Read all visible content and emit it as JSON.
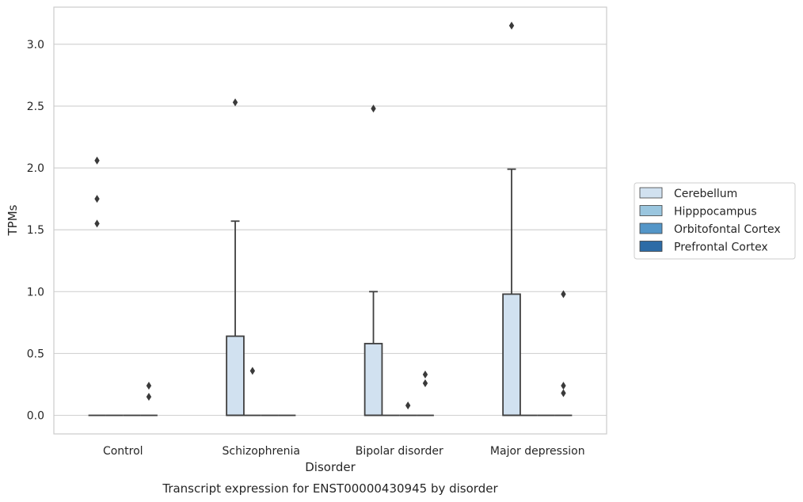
{
  "chart_data": {
    "type": "box",
    "title": "Transcript expression for ENST00000430945 by disorder",
    "xlabel": "Disorder",
    "ylabel": "TPMs",
    "ylim": [
      -0.15,
      3.3
    ],
    "yticks": [
      "0.0",
      "0.5",
      "1.0",
      "1.5",
      "2.0",
      "2.5",
      "3.0"
    ],
    "grid": true,
    "legend_position": "right",
    "categories": [
      "Control",
      "Schizophrenia",
      "Bipolar disorder",
      "Major depression"
    ],
    "series": [
      {
        "name": "Cerebellum",
        "color": "#d1e1f0",
        "boxes": [
          {
            "q1": 0,
            "median": 0,
            "q3": 0,
            "whislo": 0,
            "whishi": 0,
            "fliers": [
              1.55,
              1.75,
              2.06
            ]
          },
          {
            "q1": 0,
            "median": 0,
            "q3": 0.64,
            "whislo": 0,
            "whishi": 1.57,
            "fliers": [
              2.53
            ]
          },
          {
            "q1": 0,
            "median": 0,
            "q3": 0.58,
            "whislo": 0,
            "whishi": 1.0,
            "fliers": [
              2.48
            ]
          },
          {
            "q1": 0,
            "median": 0,
            "q3": 0.98,
            "whislo": 0,
            "whishi": 1.99,
            "fliers": [
              3.15
            ]
          }
        ]
      },
      {
        "name": "Hipppocampus",
        "color": "#9ac6df",
        "boxes": [
          {
            "q1": 0,
            "median": 0,
            "q3": 0,
            "whislo": 0,
            "whishi": 0,
            "fliers": []
          },
          {
            "q1": 0,
            "median": 0,
            "q3": 0,
            "whislo": 0,
            "whishi": 0,
            "fliers": [
              0.36
            ]
          },
          {
            "q1": 0,
            "median": 0,
            "q3": 0,
            "whislo": 0,
            "whishi": 0,
            "fliers": []
          },
          {
            "q1": 0,
            "median": 0,
            "q3": 0,
            "whislo": 0,
            "whishi": 0,
            "fliers": []
          }
        ]
      },
      {
        "name": "Orbitofontal Cortex",
        "color": "#5496c8",
        "boxes": [
          {
            "q1": 0,
            "median": 0,
            "q3": 0,
            "whislo": 0,
            "whishi": 0,
            "fliers": []
          },
          {
            "q1": 0,
            "median": 0,
            "q3": 0,
            "whislo": 0,
            "whishi": 0,
            "fliers": []
          },
          {
            "q1": 0,
            "median": 0,
            "q3": 0,
            "whislo": 0,
            "whishi": 0,
            "fliers": [
              0.08
            ]
          },
          {
            "q1": 0,
            "median": 0,
            "q3": 0,
            "whislo": 0,
            "whishi": 0,
            "fliers": []
          }
        ]
      },
      {
        "name": "Prefrontal Cortex",
        "color": "#2c6ba6",
        "boxes": [
          {
            "q1": 0,
            "median": 0,
            "q3": 0,
            "whislo": 0,
            "whishi": 0,
            "fliers": [
              0.15,
              0.24
            ]
          },
          {
            "q1": 0,
            "median": 0,
            "q3": 0,
            "whislo": 0,
            "whishi": 0,
            "fliers": []
          },
          {
            "q1": 0,
            "median": 0,
            "q3": 0,
            "whislo": 0,
            "whishi": 0,
            "fliers": [
              0.26,
              0.33
            ]
          },
          {
            "q1": 0,
            "median": 0,
            "q3": 0,
            "whislo": 0,
            "whishi": 0,
            "fliers": [
              0.18,
              0.24,
              0.98
            ]
          }
        ]
      }
    ]
  }
}
